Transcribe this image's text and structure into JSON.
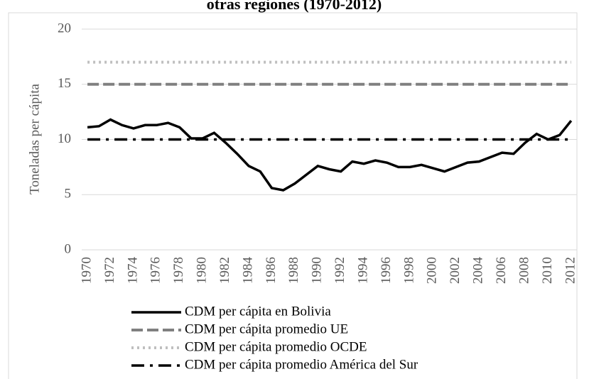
{
  "chart_data": {
    "type": "line",
    "title": "otras regiones (1970-2012)",
    "ylabel": "Toneladas per cápita",
    "categories": [
      "1970",
      null,
      "1972",
      null,
      "1974",
      null,
      "1976",
      null,
      "1978",
      null,
      "1980",
      null,
      "1982",
      null,
      "1984",
      null,
      "1986",
      null,
      "1988",
      null,
      "1990",
      null,
      "1992",
      null,
      "1994",
      null,
      "1996",
      null,
      "1998",
      null,
      "2000",
      null,
      "2002",
      null,
      "2004",
      null,
      "2006",
      null,
      "2008",
      null,
      "2010",
      null,
      "2012"
    ],
    "series": [
      {
        "name": "CDM per cápita en Bolivia",
        "color": "#000000",
        "dash": "solid",
        "values": [
          11.1,
          11.2,
          11.8,
          11.3,
          11.0,
          11.3,
          11.3,
          11.5,
          11.1,
          10.1,
          10.1,
          10.6,
          9.7,
          8.7,
          7.6,
          7.1,
          5.6,
          5.4,
          6.0,
          6.8,
          7.6,
          7.3,
          7.1,
          8.0,
          7.8,
          8.1,
          7.9,
          7.5,
          7.5,
          7.7,
          7.4,
          7.1,
          7.5,
          7.9,
          8.0,
          8.4,
          8.8,
          8.7,
          9.7,
          10.5,
          10.0,
          10.4,
          11.7
        ]
      },
      {
        "name": "CDM per cápita promedio UE",
        "color": "#808080",
        "dash": "dash",
        "values": [
          15,
          15,
          15,
          15,
          15,
          15,
          15,
          15,
          15,
          15,
          15,
          15,
          15,
          15,
          15,
          15,
          15,
          15,
          15,
          15,
          15,
          15,
          15,
          15,
          15,
          15,
          15,
          15,
          15,
          15,
          15,
          15,
          15,
          15,
          15,
          15,
          15,
          15,
          15,
          15,
          15,
          15,
          15
        ]
      },
      {
        "name": "CDM per cápita promedio OCDE",
        "color": "#bfbfbf",
        "dash": "dot",
        "values": [
          17,
          17,
          17,
          17,
          17,
          17,
          17,
          17,
          17,
          17,
          17,
          17,
          17,
          17,
          17,
          17,
          17,
          17,
          17,
          17,
          17,
          17,
          17,
          17,
          17,
          17,
          17,
          17,
          17,
          17,
          17,
          17,
          17,
          17,
          17,
          17,
          17,
          17,
          17,
          17,
          17,
          17,
          17
        ]
      },
      {
        "name": "CDM per cápita promedio América del Sur",
        "color": "#000000",
        "dash": "dashdot",
        "values": [
          10,
          10,
          10,
          10,
          10,
          10,
          10,
          10,
          10,
          10,
          10,
          10,
          10,
          10,
          10,
          10,
          10,
          10,
          10,
          10,
          10,
          10,
          10,
          10,
          10,
          10,
          10,
          10,
          10,
          10,
          10,
          10,
          10,
          10,
          10,
          10,
          10,
          10,
          10,
          10,
          10,
          10,
          10
        ]
      }
    ],
    "ylim": [
      0,
      20
    ],
    "yticks": [
      0,
      5,
      10,
      15,
      20
    ],
    "grid": true,
    "legend": "bottom"
  }
}
